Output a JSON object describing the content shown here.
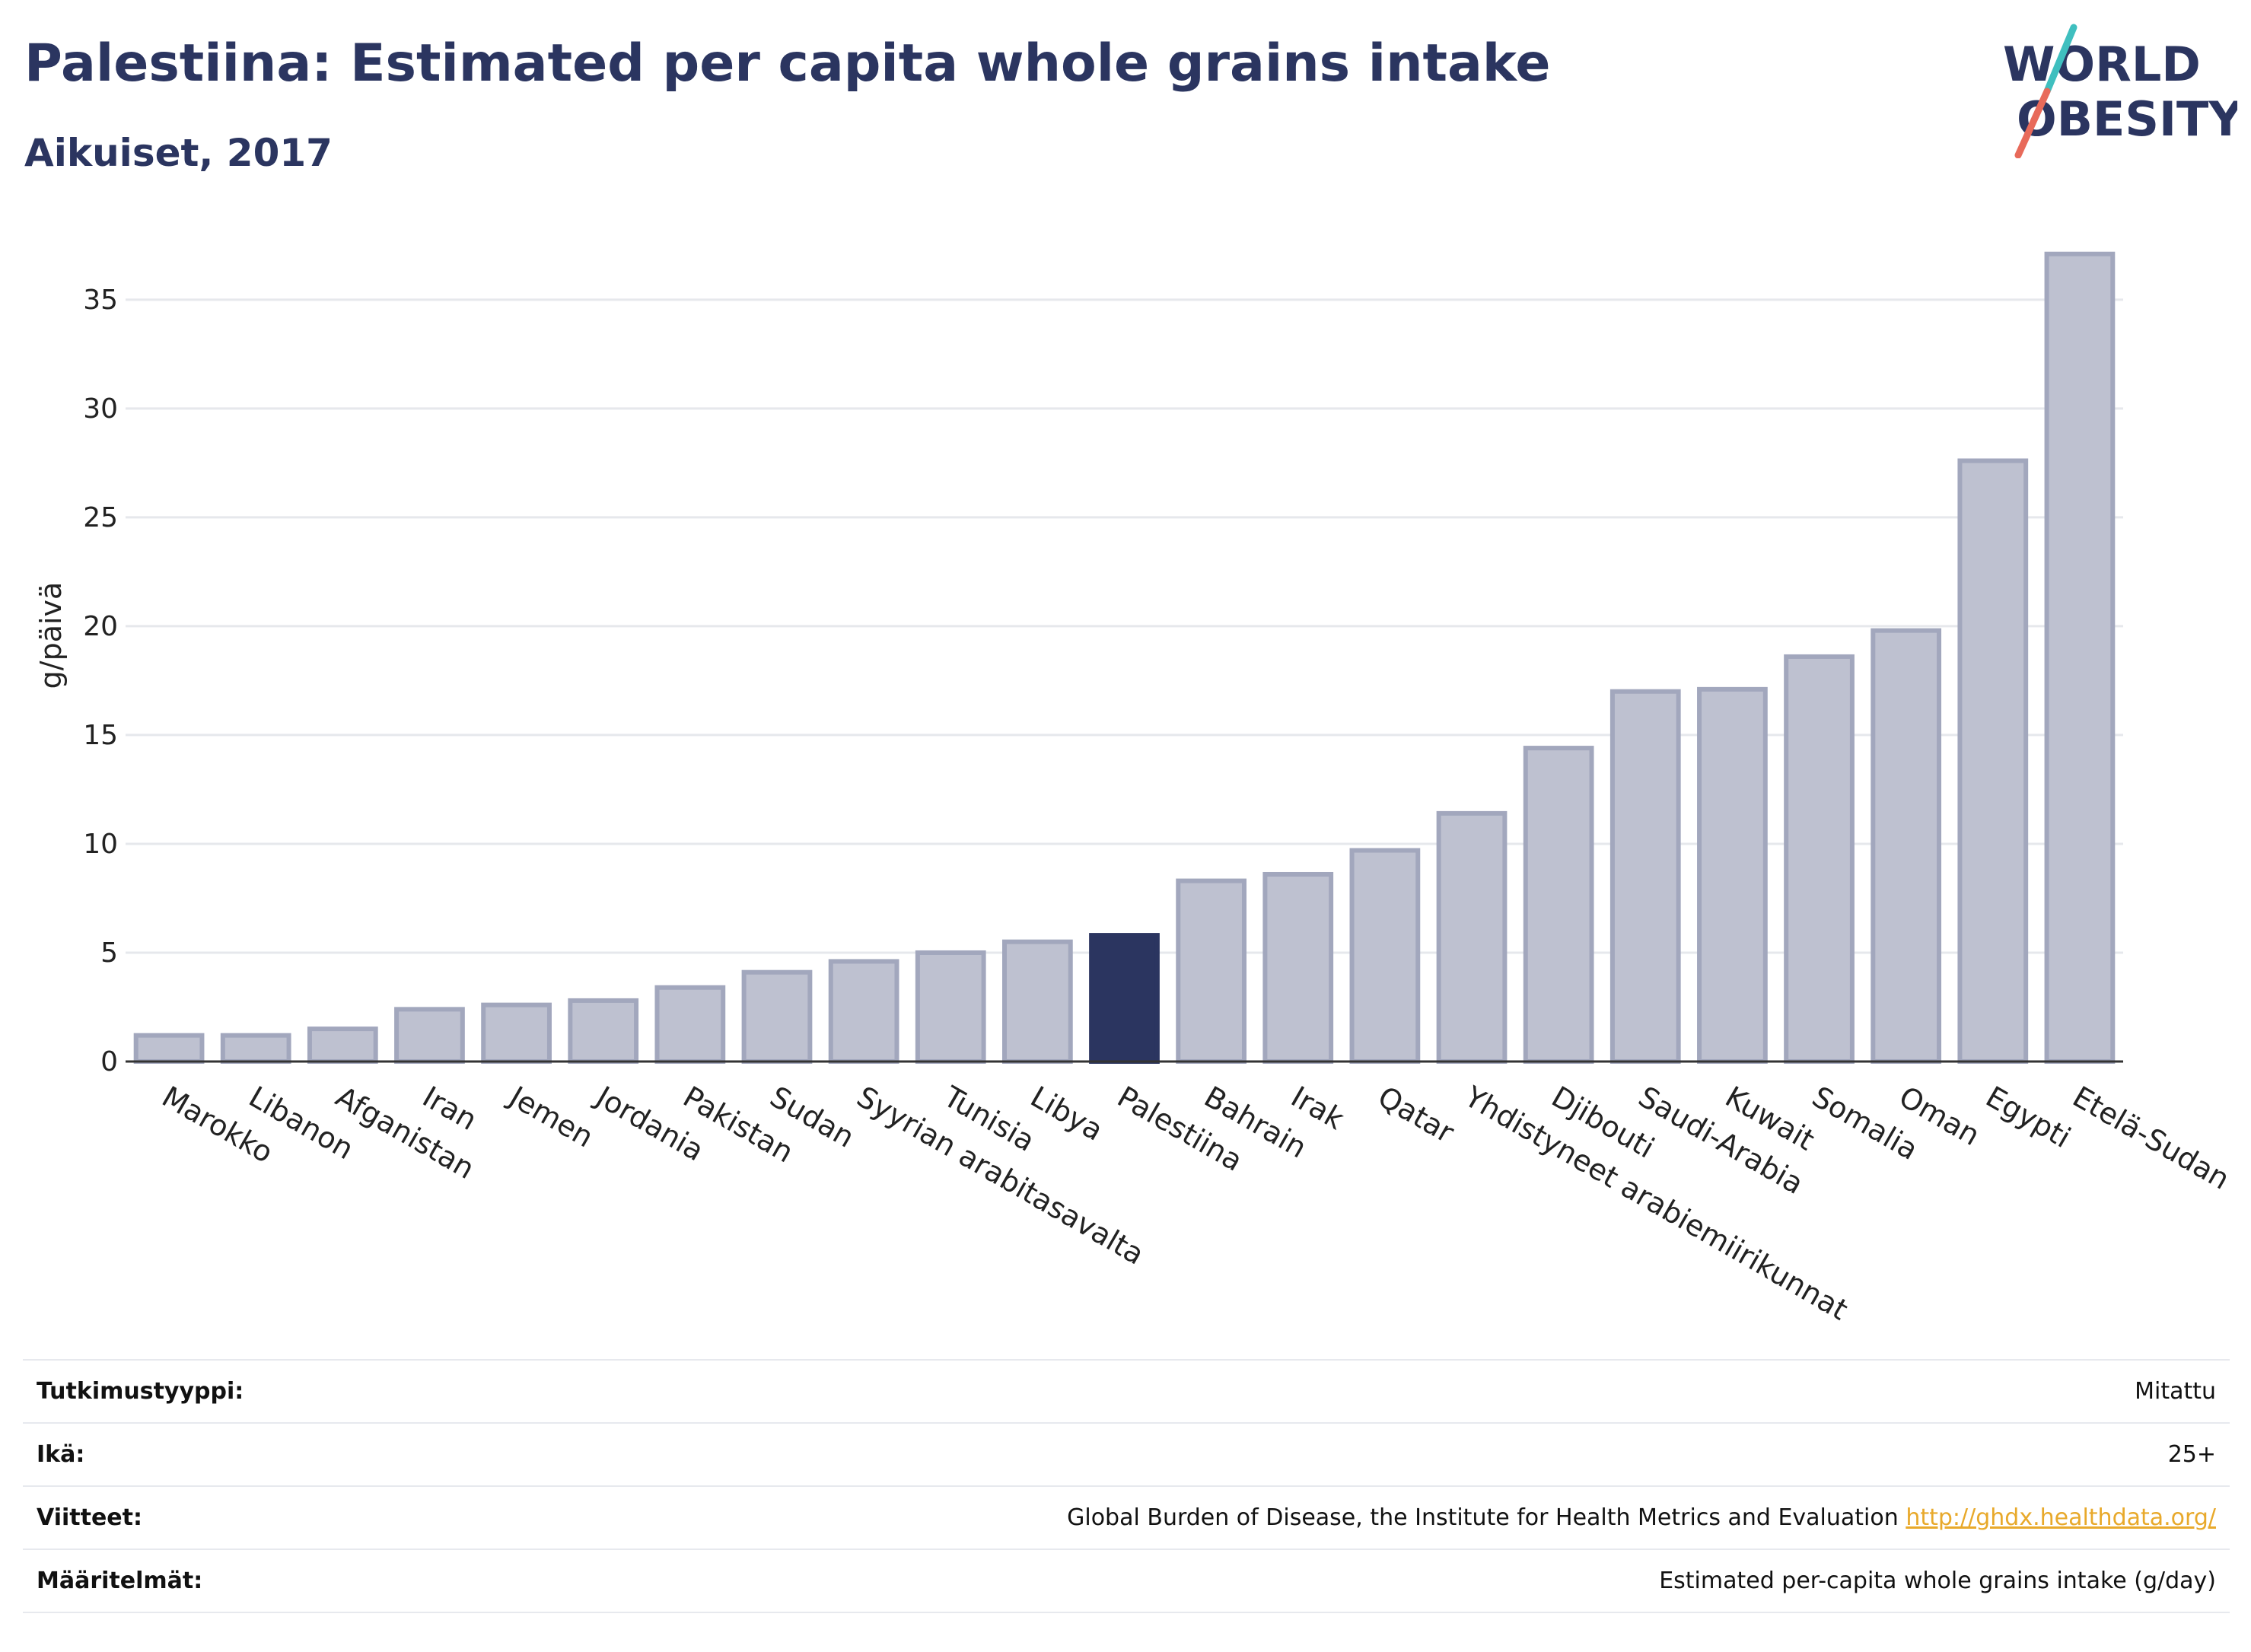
{
  "title": "Palestiina: Estimated per capita whole grains intake",
  "subtitle": "Aikuiset, 2017",
  "logo": {
    "line1": "WORLD",
    "line2": "OBESITY"
  },
  "colors": {
    "bar": "#bec1d0",
    "bar_border": "#a2a7bd",
    "highlight": "#2b3560",
    "grid": "#e6e8ec",
    "link": "#e8a92b",
    "logo_teal": "#3fbfbf",
    "logo_red": "#e86a5a"
  },
  "chart_data": {
    "type": "bar",
    "title": "Palestiina: Estimated per capita whole grains intake",
    "subtitle": "Aikuiset, 2017",
    "xlabel": "",
    "ylabel": "g/päivä",
    "ylim": [
      0,
      38
    ],
    "yticks": [
      0,
      5,
      10,
      15,
      20,
      25,
      30,
      35
    ],
    "grid": true,
    "highlight": "Palestiina",
    "categories": [
      "Marokko",
      "Libanon",
      "Afganistan",
      "Iran",
      "Jemen",
      "Jordania",
      "Pakistan",
      "Sudan",
      "Syyrian arabitasavalta",
      "Tunisia",
      "Libya",
      "Palestiina",
      "Bahrain",
      "Irak",
      "Qatar",
      "Yhdistyneet arabiemiirikunnat",
      "Djibouti",
      "Saudi-Arabia",
      "Kuwait",
      "Somalia",
      "Oman",
      "Egypti",
      "Etelä-Sudan"
    ],
    "values": [
      1.2,
      1.2,
      1.5,
      2.4,
      2.6,
      2.8,
      3.4,
      4.1,
      4.6,
      5.0,
      5.5,
      5.8,
      8.3,
      8.6,
      9.7,
      11.4,
      14.4,
      17.0,
      17.1,
      18.6,
      19.8,
      27.6,
      37.1
    ]
  },
  "info": [
    {
      "key": "Tutkimustyyppi:",
      "value": "Mitattu"
    },
    {
      "key": "Ikä:",
      "value": "25+"
    },
    {
      "key": "Viitteet:",
      "value": "Global Burden of Disease, the Institute for Health Metrics and Evaluation",
      "link": "http://ghdx.healthdata.org/"
    },
    {
      "key": "Määritelmät:",
      "value": "Estimated per-capita whole grains intake (g/day)"
    }
  ]
}
